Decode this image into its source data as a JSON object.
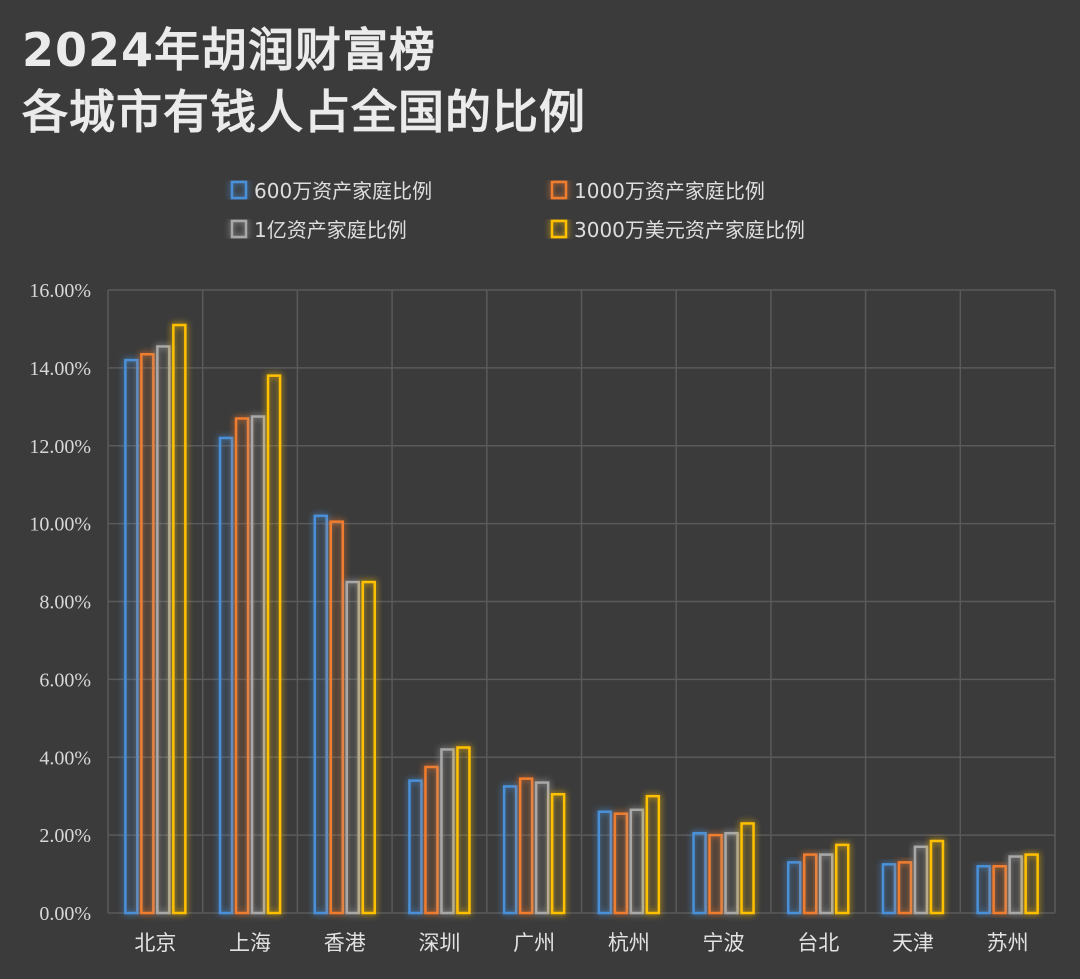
{
  "title": {
    "line1": "2024年胡润财富榜",
    "line2": "各城市有钱人占全国的比例"
  },
  "chart_data": {
    "type": "bar",
    "categories": [
      "北京",
      "上海",
      "香港",
      "深圳",
      "广州",
      "杭州",
      "宁波",
      "台北",
      "天津",
      "苏州"
    ],
    "series": [
      {
        "name": "600万资产家庭比例",
        "color": "#4a90d9",
        "values": [
          14.2,
          12.2,
          10.2,
          3.4,
          3.25,
          2.6,
          2.05,
          1.3,
          1.25,
          1.2
        ]
      },
      {
        "name": "1000万资产家庭比例",
        "color": "#f07c2e",
        "values": [
          14.35,
          12.7,
          10.05,
          3.75,
          3.45,
          2.55,
          2.0,
          1.5,
          1.3,
          1.2
        ]
      },
      {
        "name": "1亿资产家庭比例",
        "color": "#a8a8a8",
        "values": [
          14.55,
          12.75,
          8.5,
          4.2,
          3.35,
          2.65,
          2.05,
          1.5,
          1.7,
          1.45
        ]
      },
      {
        "name": "3000万美元资产家庭比例",
        "color": "#ffc000",
        "values": [
          15.1,
          13.8,
          8.5,
          4.25,
          3.05,
          3.0,
          2.3,
          1.75,
          1.85,
          1.5
        ]
      }
    ],
    "yticks": [
      "0.00%",
      "2.00%",
      "4.00%",
      "6.00%",
      "8.00%",
      "10.00%",
      "12.00%",
      "14.00%",
      "16.00%"
    ],
    "ylim": [
      0,
      16
    ],
    "grid": true,
    "legend_position": "top"
  }
}
